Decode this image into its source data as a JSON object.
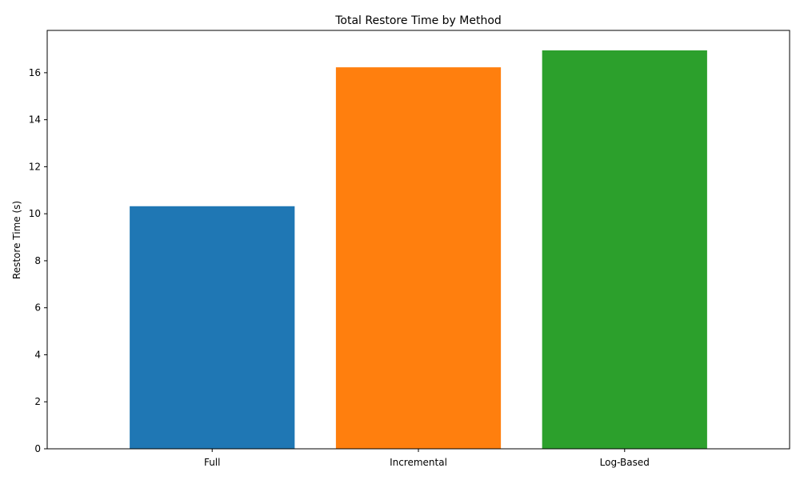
{
  "chart_data": {
    "type": "bar",
    "title": "Total Restore Time by Method",
    "xlabel": "",
    "ylabel": "Restore Time (s)",
    "categories": [
      "Full",
      "Incremental",
      "Log-Based"
    ],
    "values": [
      10.32,
      16.23,
      16.95
    ],
    "colors": [
      "#1f77b4",
      "#ff7f0e",
      "#2ca02c"
    ],
    "ylim": [
      0,
      17.8
    ],
    "yticks": [
      0,
      2,
      4,
      6,
      8,
      10,
      12,
      14,
      16
    ],
    "grid": false,
    "legend": "none"
  }
}
